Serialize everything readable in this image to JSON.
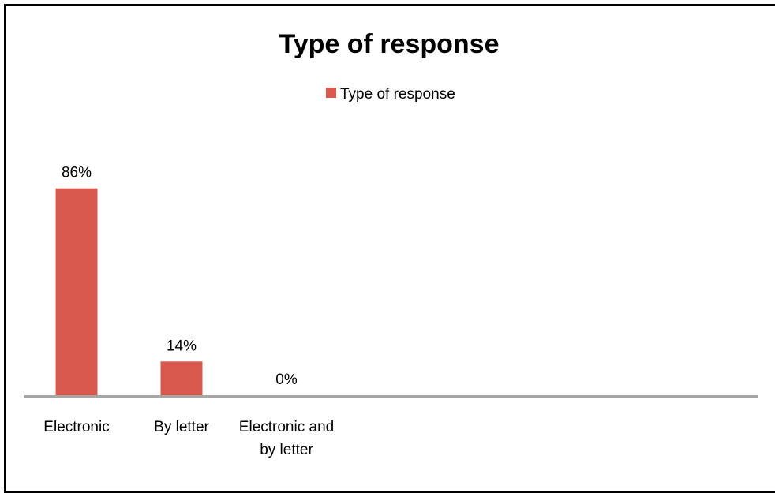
{
  "chart_data": {
    "type": "bar",
    "title": "Type of response",
    "categories": [
      "Electronic",
      "By letter",
      "Electronic and by letter"
    ],
    "category_lines": [
      [
        "Electronic"
      ],
      [
        "By letter"
      ],
      [
        "Electronic and",
        "by letter"
      ]
    ],
    "series": [
      {
        "name": "Type of response",
        "values": [
          86,
          14,
          0
        ],
        "color": "#D9594F"
      }
    ],
    "data_labels": [
      "86%",
      "14%",
      "0%"
    ],
    "legend_position": "top",
    "grid": false,
    "ylim": [
      0,
      100
    ],
    "axis_color": "#A6A6A6"
  }
}
